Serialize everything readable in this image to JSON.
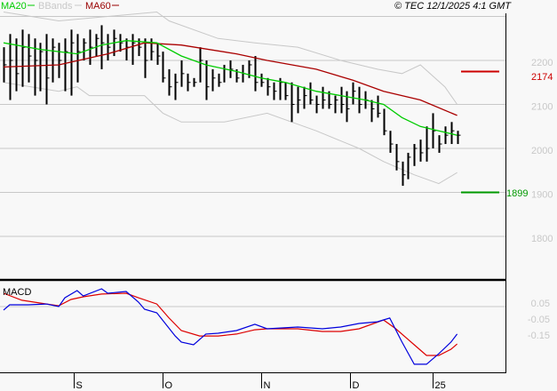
{
  "legend": {
    "ma20": "MA20",
    "bbands": "BBands",
    "ma60": "MA60"
  },
  "copyright": "© TEC 12/1/2025 4:1 GMT",
  "macd_label": "MACD",
  "colors": {
    "ma20": "#00cc00",
    "ma60": "#aa0000",
    "bbands": "#c8c8c8",
    "macd": "#0000dd",
    "signal": "#dd0000",
    "ref_high": "#cc0000",
    "ref_low": "#009900"
  },
  "reference_levels": {
    "high": {
      "value": 2174,
      "label": "2174"
    },
    "low": {
      "value": 1899,
      "label": "1899"
    }
  },
  "chart_data": [
    {
      "type": "ohlc",
      "title": "Price",
      "ylim": [
        1740,
        2300
      ],
      "y_ticks": [
        {
          "v": 2200,
          "label": "2200"
        },
        {
          "v": 2100,
          "label": "2100"
        },
        {
          "v": 2000,
          "label": "2000"
        },
        {
          "v": 1900,
          "label": "1900"
        },
        {
          "v": 1800,
          "label": "1800"
        }
      ],
      "x_ticks": [
        {
          "i": 11.5,
          "label": "S"
        },
        {
          "i": 26,
          "label": "O"
        },
        {
          "i": 42,
          "label": "N"
        },
        {
          "i": 56.5,
          "label": "D"
        },
        {
          "i": 70,
          "label": "25"
        }
      ],
      "bars": [
        [
          2230,
          2150,
          2190
        ],
        [
          2260,
          2110,
          2200
        ],
        [
          2250,
          2130,
          2170
        ],
        [
          2270,
          2140,
          2230
        ],
        [
          2260,
          2150,
          2210
        ],
        [
          2250,
          2120,
          2200
        ],
        [
          2240,
          2130,
          2220
        ],
        [
          2260,
          2100,
          2160
        ],
        [
          2250,
          2150,
          2230
        ],
        [
          2240,
          2160,
          2200
        ],
        [
          2250,
          2130,
          2220
        ],
        [
          2270,
          2120,
          2240
        ],
        [
          2260,
          2150,
          2220
        ],
        [
          2250,
          2200,
          2240
        ],
        [
          2270,
          2190,
          2230
        ],
        [
          2260,
          2210,
          2250
        ],
        [
          2280,
          2180,
          2240
        ],
        [
          2260,
          2200,
          2230
        ],
        [
          2270,
          2210,
          2250
        ],
        [
          2260,
          2220,
          2240
        ],
        [
          2250,
          2200,
          2230
        ],
        [
          2260,
          2190,
          2240
        ],
        [
          2250,
          2210,
          2230
        ],
        [
          2250,
          2160,
          2200
        ],
        [
          2250,
          2200,
          2220
        ],
        [
          2240,
          2190,
          2210
        ],
        [
          2220,
          2150,
          2160
        ],
        [
          2180,
          2120,
          2140
        ],
        [
          2170,
          2110,
          2150
        ],
        [
          2200,
          2140,
          2170
        ],
        [
          2170,
          2130,
          2150
        ],
        [
          2160,
          2140,
          2150
        ],
        [
          2230,
          2150,
          2200
        ],
        [
          2200,
          2110,
          2140
        ],
        [
          2180,
          2130,
          2160
        ],
        [
          2170,
          2140,
          2150
        ],
        [
          2190,
          2150,
          2180
        ],
        [
          2200,
          2160,
          2180
        ],
        [
          2180,
          2150,
          2160
        ],
        [
          2190,
          2150,
          2170
        ],
        [
          2200,
          2160,
          2190
        ],
        [
          2210,
          2130,
          2150
        ],
        [
          2170,
          2140,
          2150
        ],
        [
          2160,
          2120,
          2140
        ],
        [
          2150,
          2110,
          2130
        ],
        [
          2160,
          2110,
          2150
        ],
        [
          2150,
          2110,
          2120
        ],
        [
          2150,
          2060,
          2100
        ],
        [
          2140,
          2080,
          2110
        ],
        [
          2140,
          2090,
          2120
        ],
        [
          2150,
          2100,
          2110
        ],
        [
          2120,
          2080,
          2100
        ],
        [
          2140,
          2090,
          2110
        ],
        [
          2130,
          2090,
          2100
        ],
        [
          2120,
          2080,
          2110
        ],
        [
          2140,
          2080,
          2100
        ],
        [
          2130,
          2060,
          2090
        ],
        [
          2150,
          2100,
          2130
        ],
        [
          2140,
          2080,
          2100
        ],
        [
          2130,
          2090,
          2110
        ],
        [
          2110,
          2060,
          2090
        ],
        [
          2120,
          2070,
          2080
        ],
        [
          2090,
          2030,
          2040
        ],
        [
          2040,
          1990,
          2010
        ],
        [
          2010,
          1950,
          1970
        ],
        [
          1970,
          1915,
          1940
        ],
        [
          1990,
          1930,
          1980
        ],
        [
          2010,
          1960,
          2000
        ],
        [
          2020,
          1970,
          1990
        ],
        [
          2050,
          1970,
          2000
        ],
        [
          2080,
          2000,
          2040
        ],
        [
          2030,
          1990,
          2010
        ],
        [
          2050,
          2010,
          2030
        ],
        [
          2060,
          2010,
          2040
        ],
        [
          2040,
          2010,
          2030
        ]
      ],
      "ma20": [
        [
          0,
          2240
        ],
        [
          6,
          2225
        ],
        [
          12,
          2215
        ],
        [
          16,
          2235
        ],
        [
          20,
          2245
        ],
        [
          25,
          2240
        ],
        [
          29,
          2210
        ],
        [
          33,
          2190
        ],
        [
          38,
          2175
        ],
        [
          42,
          2160
        ],
        [
          46,
          2150
        ],
        [
          51,
          2130
        ],
        [
          55,
          2120
        ],
        [
          59,
          2110
        ],
        [
          62,
          2100
        ],
        [
          65,
          2070
        ],
        [
          68,
          2050
        ],
        [
          71,
          2040
        ],
        [
          74,
          2030
        ]
      ],
      "ma60": [
        [
          0,
          2185
        ],
        [
          9,
          2190
        ],
        [
          17,
          2215
        ],
        [
          23,
          2240
        ],
        [
          29,
          2235
        ],
        [
          38,
          2215
        ],
        [
          43,
          2200
        ],
        [
          51,
          2180
        ],
        [
          57,
          2155
        ],
        [
          62,
          2130
        ],
        [
          68,
          2110
        ],
        [
          74,
          2075
        ]
      ],
      "bb_upper": [
        [
          0,
          2310
        ],
        [
          9,
          2290
        ],
        [
          17,
          2300
        ],
        [
          25,
          2310
        ],
        [
          27,
          2290
        ],
        [
          35,
          2250
        ],
        [
          41,
          2240
        ],
        [
          48,
          2230
        ],
        [
          55,
          2200
        ],
        [
          61,
          2180
        ],
        [
          65,
          2170
        ],
        [
          68,
          2190
        ],
        [
          72,
          2140
        ],
        [
          74,
          2100
        ]
      ],
      "bb_lower": [
        [
          0,
          2150
        ],
        [
          9,
          2130
        ],
        [
          12,
          2140
        ],
        [
          14,
          2120
        ],
        [
          23,
          2120
        ],
        [
          26,
          2080
        ],
        [
          29,
          2060
        ],
        [
          36,
          2060
        ],
        [
          43,
          2080
        ],
        [
          51,
          2040
        ],
        [
          58,
          2000
        ],
        [
          62,
          1970
        ],
        [
          67,
          1940
        ],
        [
          71,
          1920
        ],
        [
          74,
          1945
        ]
      ]
    },
    {
      "type": "line",
      "title": "MACD",
      "ylim": [
        -0.45,
        0.2
      ],
      "y_ticks": [
        {
          "v": 0.05,
          "label": "0.05"
        },
        {
          "v": -0.05,
          "label": "-0.05"
        },
        {
          "v": -0.15,
          "label": "-0.15"
        }
      ],
      "series": [
        {
          "name": "MACD",
          "points": [
            [
              0,
              0.006
            ],
            [
              1,
              0.039
            ],
            [
              4,
              0.039
            ],
            [
              7,
              0.044
            ],
            [
              9,
              0.028
            ],
            [
              10,
              0.083
            ],
            [
              12,
              0.128
            ],
            [
              13,
              0.094
            ],
            [
              16,
              0.139
            ],
            [
              17,
              0.111
            ],
            [
              20,
              0.122
            ],
            [
              22,
              0.056
            ],
            [
              23,
              0.011
            ],
            [
              25,
              -0.011
            ],
            [
              28,
              -0.156
            ],
            [
              29,
              -0.194
            ],
            [
              31,
              -0.211
            ],
            [
              33,
              -0.144
            ],
            [
              35,
              -0.139
            ],
            [
              38,
              -0.122
            ],
            [
              41,
              -0.083
            ],
            [
              43,
              -0.111
            ],
            [
              48,
              -0.1
            ],
            [
              52,
              -0.111
            ],
            [
              55,
              -0.1
            ],
            [
              58,
              -0.078
            ],
            [
              61,
              -0.067
            ],
            [
              63,
              -0.044
            ],
            [
              65,
              -0.194
            ],
            [
              67,
              -0.333
            ],
            [
              69,
              -0.333
            ],
            [
              71,
              -0.267
            ],
            [
              73,
              -0.194
            ],
            [
              74,
              -0.144
            ]
          ]
        },
        {
          "name": "Signal",
          "points": [
            [
              0,
              0.111
            ],
            [
              3,
              0.067
            ],
            [
              7,
              0.044
            ],
            [
              9,
              0.033
            ],
            [
              11,
              0.072
            ],
            [
              13,
              0.089
            ],
            [
              16,
              0.106
            ],
            [
              20,
              0.111
            ],
            [
              22,
              0.083
            ],
            [
              25,
              0.044
            ],
            [
              27,
              -0.044
            ],
            [
              29,
              -0.122
            ],
            [
              32,
              -0.156
            ],
            [
              35,
              -0.156
            ],
            [
              38,
              -0.144
            ],
            [
              41,
              -0.117
            ],
            [
              43,
              -0.111
            ],
            [
              48,
              -0.111
            ],
            [
              52,
              -0.128
            ],
            [
              55,
              -0.128
            ],
            [
              58,
              -0.111
            ],
            [
              62,
              -0.056
            ],
            [
              64,
              -0.111
            ],
            [
              67,
              -0.211
            ],
            [
              69,
              -0.278
            ],
            [
              71,
              -0.278
            ],
            [
              73,
              -0.239
            ],
            [
              74,
              -0.206
            ]
          ]
        }
      ]
    }
  ]
}
